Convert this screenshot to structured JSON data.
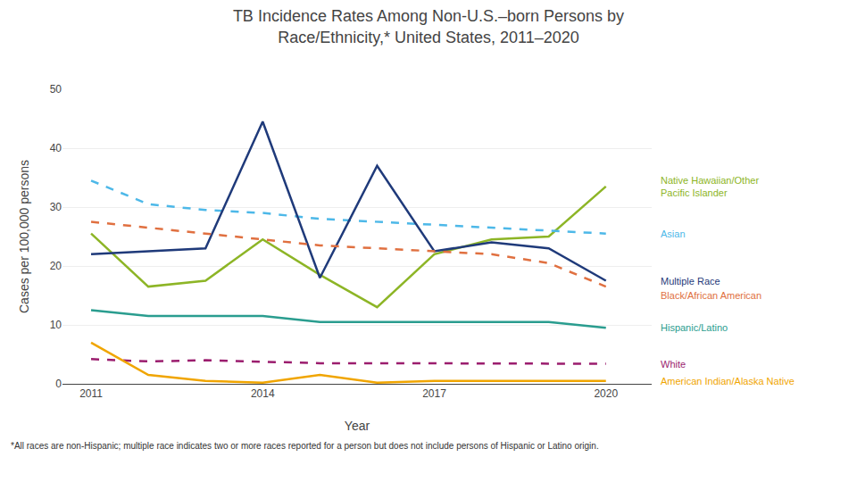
{
  "chart_data": {
    "type": "line",
    "title": "TB Incidence Rates Among Non-U.S.–born Persons by\nRace/Ethnicity,* United States, 2011–2020",
    "xlabel": "Year",
    "ylabel": "Cases per 100,000 persons",
    "x": [
      2011,
      2012,
      2013,
      2014,
      2015,
      2016,
      2017,
      2018,
      2019,
      2020
    ],
    "series": [
      {
        "name": "Native Hawaiian/Other\nPacific Islander",
        "color": "#8db526",
        "line_style": "solid",
        "values": [
          25.5,
          16.5,
          17.5,
          24.5,
          18.5,
          13.0,
          22.0,
          24.5,
          25.0,
          33.5
        ]
      },
      {
        "name": "Asian",
        "color": "#4db8e8",
        "line_style": "dashed",
        "values": [
          34.5,
          30.5,
          29.5,
          29.0,
          28.0,
          27.5,
          27.0,
          26.5,
          26.0,
          25.5
        ]
      },
      {
        "name": "Multiple Race",
        "color": "#1f3a7a",
        "line_style": "solid",
        "values": [
          22.0,
          22.5,
          23.0,
          44.5,
          18.0,
          37.0,
          22.5,
          24.0,
          23.0,
          17.5
        ]
      },
      {
        "name": "Black/African American",
        "color": "#e07040",
        "line_style": "dashed",
        "values": [
          27.5,
          26.5,
          25.5,
          24.5,
          23.5,
          23.0,
          22.5,
          22.0,
          20.5,
          16.5
        ]
      },
      {
        "name": "Hispanic/Latino",
        "color": "#2a9d8f",
        "line_style": "solid",
        "values": [
          12.5,
          11.5,
          11.5,
          11.5,
          10.5,
          10.5,
          10.5,
          10.5,
          10.5,
          9.5
        ]
      },
      {
        "name": "White",
        "color": "#9b1d6e",
        "line_style": "dashed",
        "values": [
          4.2,
          3.8,
          4.0,
          3.8,
          3.5,
          3.5,
          3.5,
          3.5,
          3.5,
          3.4
        ]
      },
      {
        "name": "American Indian/Alaska Native",
        "color": "#f0a500",
        "line_style": "solid",
        "values": [
          7.0,
          1.5,
          0.5,
          0.2,
          1.5,
          0.2,
          0.5,
          0.5,
          0.5,
          0.5
        ]
      }
    ],
    "xlim": [
      2010.5,
      2020.8
    ],
    "xticks": [
      2011,
      2014,
      2017,
      2020
    ],
    "ylim": [
      0,
      50
    ],
    "yticks": [
      0,
      10,
      20,
      30,
      40,
      50
    ],
    "grid": true,
    "annotations": [
      "*All races are non-Hispanic; multiple race indicates two or more races reported for a person but does not include persons of Hispanic or Latino origin."
    ]
  }
}
